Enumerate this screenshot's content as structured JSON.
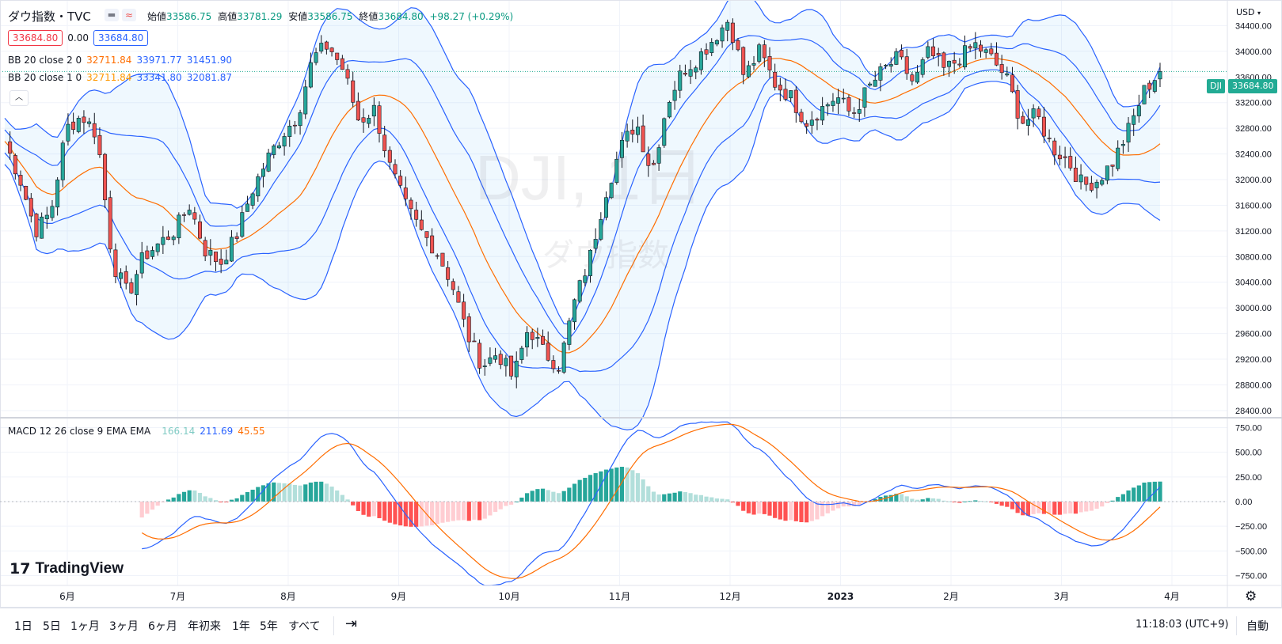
{
  "header": {
    "symbol": "ダウ指数・TVC",
    "ohlc": [
      {
        "label": "始値",
        "value": "33586.75"
      },
      {
        "label": "高値",
        "value": "33781.29"
      },
      {
        "label": "安値",
        "value": "33586.75"
      },
      {
        "label": "終値",
        "value": "33684.80"
      }
    ],
    "change": "+98.27 (+0.29%)",
    "bid": "33684.80",
    "spread": "0.00",
    "ask": "33684.80",
    "currency": "USD",
    "watermark_symbol": "DJI, 1日",
    "watermark_name": "ダウ指数",
    "price_tag_label": "DJI",
    "price_tag_value": "33684.80",
    "colors": {
      "up": "#26a69a",
      "down": "#ef5350",
      "bb_band": "#2962ff",
      "bb_basis": "#ff6d00",
      "macd": "#2962ff",
      "signal": "#ff6d00"
    }
  },
  "indicators": [
    {
      "label": "BB 20 close 2 0",
      "basis": "32711.84",
      "upper": "33971.77",
      "lower": "31451.90"
    },
    {
      "label": "BB 20 close 1 0",
      "basis": "32711.84",
      "upper": "33341.80",
      "lower": "32081.87"
    }
  ],
  "macd_legend": {
    "label": "MACD 12 26 close 9 EMA EMA",
    "hist": "166.14",
    "macd": "211.69",
    "signal": "45.55"
  },
  "x_labels": [
    "6月",
    "7月",
    "8月",
    "9月",
    "10月",
    "11月",
    "12月",
    "2023",
    "2月",
    "3月",
    "4月"
  ],
  "y_labels_price": [
    "34400.00",
    "34000.00",
    "33600.00",
    "33200.00",
    "32800.00",
    "32400.00",
    "32000.00",
    "31600.00",
    "31200.00",
    "30800.00",
    "30400.00",
    "30000.00",
    "29600.00",
    "29200.00",
    "28800.00",
    "28400.00"
  ],
  "y_labels_macd": [
    "750.00",
    "500.00",
    "250.00",
    "0.00",
    "−250.00",
    "−500.00",
    "−750.00"
  ],
  "toolbar": {
    "timeframes": [
      "1日",
      "5日",
      "1ヶ月",
      "3ヶ月",
      "6ヶ月",
      "年初来",
      "1年",
      "5年",
      "すべて"
    ],
    "clock": "11:18:03 (UTC+9)",
    "auto": "自動",
    "brand": "TradingView"
  },
  "chart_data": {
    "type": "candlestick",
    "title": "ダウ指数・TVC",
    "x_axis_labels": [
      "6月",
      "7月",
      "8月",
      "9月",
      "10月",
      "11月",
      "12月",
      "2023",
      "2月",
      "3月",
      "4月"
    ],
    "ylim": [
      28300,
      34800
    ],
    "close_path": [
      32600,
      32000,
      31200,
      31500,
      32800,
      33000,
      32700,
      30700,
      30200,
      30800,
      31000,
      31200,
      31600,
      30900,
      30700,
      31100,
      31800,
      32300,
      32700,
      33000,
      33900,
      34100,
      33700,
      32900,
      33100,
      32200,
      31600,
      31200,
      30900,
      30400,
      29600,
      29100,
      29300,
      28900,
      29700,
      29300,
      29100,
      30100,
      30800,
      31800,
      32500,
      32900,
      32100,
      33200,
      33700,
      33900,
      34200,
      34500,
      33600,
      34000,
      33500,
      33300,
      32900,
      33100,
      33300,
      33000,
      33400,
      33700,
      33900,
      33500,
      34000,
      33700,
      33900,
      34100,
      33900,
      33600,
      32900,
      33000,
      32500,
      32300,
      31900,
      32000,
      32300,
      32800,
      33400,
      33684.8
    ],
    "bb_2sd_upper_end": 33971.77,
    "bb_basis_end": 32711.84,
    "bb_2sd_lower_end": 31451.9,
    "bb_1sd_upper_end": 33341.8,
    "bb_1sd_lower_end": 32081.87,
    "macd_ylim": [
      -850,
      850
    ],
    "macd_end": 211.69,
    "signal_end": 45.55,
    "hist_end": 166.14
  }
}
